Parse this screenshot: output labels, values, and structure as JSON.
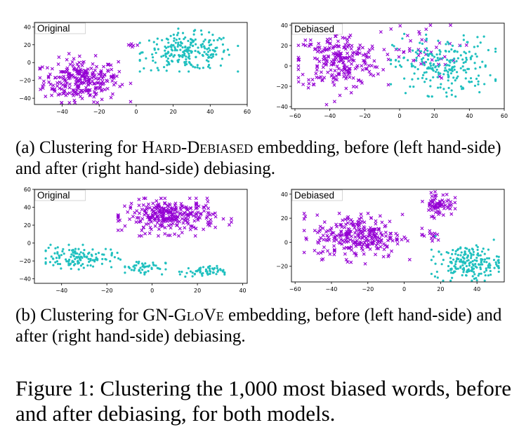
{
  "chart_data": [
    {
      "type": "scatter",
      "panel": "a-left",
      "legend_label": "Original",
      "legend_placement": "top-left",
      "xlim": [
        -55,
        60
      ],
      "ylim": [
        -47,
        45
      ],
      "xticks": [
        -40,
        -20,
        0,
        20,
        40,
        60
      ],
      "yticks": [
        -40,
        -20,
        0,
        20,
        40
      ],
      "series": [
        {
          "marker": "x",
          "color": "#9400d3",
          "clusters": [
            {
              "cx": -30,
              "cy": -20,
              "sx": 10,
              "sy": 12,
              "n": 260,
              "xr": [
                -52,
                -3
              ],
              "yr": [
                -45,
                15
              ]
            },
            {
              "cx": -14,
              "cy": -17,
              "sx": 2,
              "sy": 2,
              "n": 8,
              "xr": [
                -18,
                -10
              ],
              "yr": [
                -20,
                -14
              ]
            },
            {
              "cx": -2,
              "cy": 20,
              "sx": 2,
              "sy": 2,
              "n": 6,
              "xr": [
                -8,
                2
              ],
              "yr": [
                14,
                24
              ]
            }
          ]
        },
        {
          "marker": "o",
          "color": "#20c0bf",
          "clusters": [
            {
              "cx": 28,
              "cy": 12,
              "sx": 12,
              "sy": 10,
              "n": 230,
              "xr": [
                2,
                55
              ],
              "yr": [
                -10,
                38
              ]
            }
          ]
        }
      ]
    },
    {
      "type": "scatter",
      "panel": "a-right",
      "legend_label": "Debiased",
      "legend_placement": "top-left",
      "xlim": [
        -62,
        60
      ],
      "ylim": [
        -42,
        42
      ],
      "xticks": [
        -60,
        -40,
        -20,
        0,
        20,
        40,
        60
      ],
      "yticks": [
        -40,
        -20,
        0,
        20,
        40
      ],
      "series": [
        {
          "marker": "x",
          "color": "#9400d3",
          "clusters": [
            {
              "cx": -35,
              "cy": 5,
              "sx": 12,
              "sy": 14,
              "n": 240,
              "xr": [
                -58,
                -2
              ],
              "yr": [
                -38,
                40
              ]
            },
            {
              "cx": 10,
              "cy": 15,
              "sx": 12,
              "sy": 14,
              "n": 40,
              "xr": [
                -5,
                40
              ],
              "yr": [
                -30,
                40
              ]
            }
          ]
        },
        {
          "marker": "o",
          "color": "#20c0bf",
          "clusters": [
            {
              "cx": 25,
              "cy": 0,
              "sx": 14,
              "sy": 14,
              "n": 230,
              "xr": [
                -5,
                55
              ],
              "yr": [
                -30,
                40
              ]
            }
          ]
        }
      ]
    },
    {
      "type": "scatter",
      "panel": "b-left",
      "legend_label": "Original",
      "legend_placement": "top-left",
      "xlim": [
        -52,
        42
      ],
      "ylim": [
        -45,
        60
      ],
      "xticks": [
        -40,
        -20,
        0,
        20,
        40
      ],
      "yticks": [
        -40,
        -20,
        0,
        20,
        40,
        60
      ],
      "series": [
        {
          "marker": "x",
          "color": "#9400d3",
          "clusters": [
            {
              "cx": 8,
              "cy": 30,
              "sx": 10,
              "sy": 9,
              "n": 300,
              "xr": [
                -15,
                35
              ],
              "yr": [
                8,
                50
              ]
            }
          ]
        },
        {
          "marker": "o",
          "color": "#20c0bf",
          "clusters": [
            {
              "cx": -33,
              "cy": -16,
              "sx": 8,
              "sy": 6,
              "n": 130,
              "xr": [
                -47,
                -14
              ],
              "yr": [
                -35,
                -2
              ]
            },
            {
              "cx": -4,
              "cy": -27,
              "sx": 5,
              "sy": 4,
              "n": 50,
              "xr": [
                -12,
                6
              ],
              "yr": [
                -35,
                -18
              ]
            },
            {
              "cx": 22,
              "cy": -32,
              "sx": 5,
              "sy": 3,
              "n": 60,
              "xr": [
                12,
                32
              ],
              "yr": [
                -40,
                -25
              ]
            }
          ]
        }
      ]
    },
    {
      "type": "scatter",
      "panel": "b-right",
      "legend_label": "Debiased",
      "legend_placement": "top-left",
      "xlim": [
        -62,
        55
      ],
      "ylim": [
        -33,
        44
      ],
      "xticks": [
        -60,
        -40,
        -20,
        0,
        20,
        40
      ],
      "yticks": [
        -20,
        0,
        20,
        40
      ],
      "series": [
        {
          "marker": "x",
          "color": "#9400d3",
          "clusters": [
            {
              "cx": -25,
              "cy": 5,
              "sx": 12,
              "sy": 9,
              "n": 280,
              "xr": [
                -55,
                3
              ],
              "yr": [
                -20,
                32
              ]
            },
            {
              "cx": 19,
              "cy": 32,
              "sx": 4,
              "sy": 5,
              "n": 70,
              "xr": [
                10,
                28
              ],
              "yr": [
                20,
                42
              ]
            },
            {
              "cx": 14,
              "cy": 5,
              "sx": 3,
              "sy": 3,
              "n": 15,
              "xr": [
                8,
                20
              ],
              "yr": [
                -3,
                12
              ]
            }
          ]
        },
        {
          "marker": "o",
          "color": "#20c0bf",
          "clusters": [
            {
              "cx": 35,
              "cy": -17,
              "sx": 9,
              "sy": 7,
              "n": 200,
              "xr": [
                15,
                52
              ],
              "yr": [
                -32,
                5
              ]
            }
          ]
        }
      ]
    }
  ],
  "captions": {
    "a": {
      "prefix": "(a) Clustering for ",
      "name": "Hard-Debiased",
      "suffix": " embedding, before (left hand-side) and after (right hand-side) debiasing."
    },
    "b": {
      "prefix": "(b) Clustering for ",
      "name": "GN-GloVe",
      "suffix": " embedding, before (left hand-side) and after (right hand-side) debiasing."
    },
    "figure": "Figure 1: Clustering the 1,000 most biased words, before and after debiasing, for both models."
  },
  "colors": {
    "purple": "#9400d3",
    "teal": "#20c0bf",
    "axis": "#000000"
  }
}
